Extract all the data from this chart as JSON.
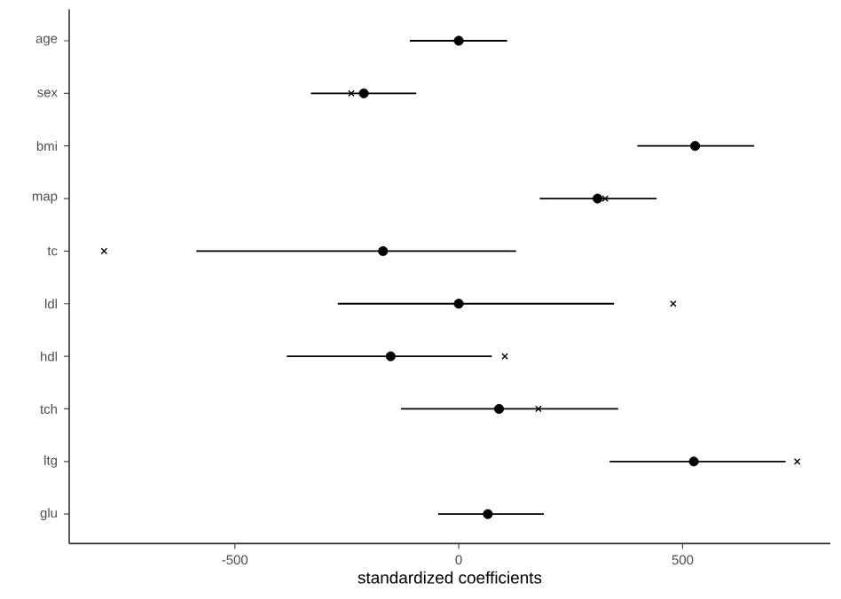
{
  "chart_data": {
    "type": "scatter",
    "orientation": "horizontal",
    "xlabel": "standardized coefficients",
    "categories": [
      "age",
      "sex",
      "bmi",
      "map",
      "tc",
      "ldl",
      "hdl",
      "tch",
      "ltg",
      "glu"
    ],
    "xlim": [
      -870,
      830
    ],
    "xticks": [
      -500,
      0,
      500
    ],
    "grid": false,
    "series": [
      {
        "color": "#000000",
        "marker": "circle",
        "values": [
          0,
          -212,
          528,
          310,
          -169,
          0,
          -152,
          90,
          525,
          65
        ],
        "errors": [
          [
            -109,
            108
          ],
          [
            -330,
            -95
          ],
          [
            399,
            660
          ],
          [
            181,
            442
          ],
          [
            -586,
            128
          ],
          [
            -270,
            347
          ],
          [
            -384,
            74
          ],
          [
            -129,
            356
          ],
          [
            337,
            730
          ],
          [
            -46,
            190
          ]
        ]
      },
      {
        "color": "#000000",
        "marker": "cross",
        "values": [
          null,
          -240,
          null,
          327,
          -792,
          479,
          103,
          178,
          756,
          null
        ]
      }
    ]
  }
}
